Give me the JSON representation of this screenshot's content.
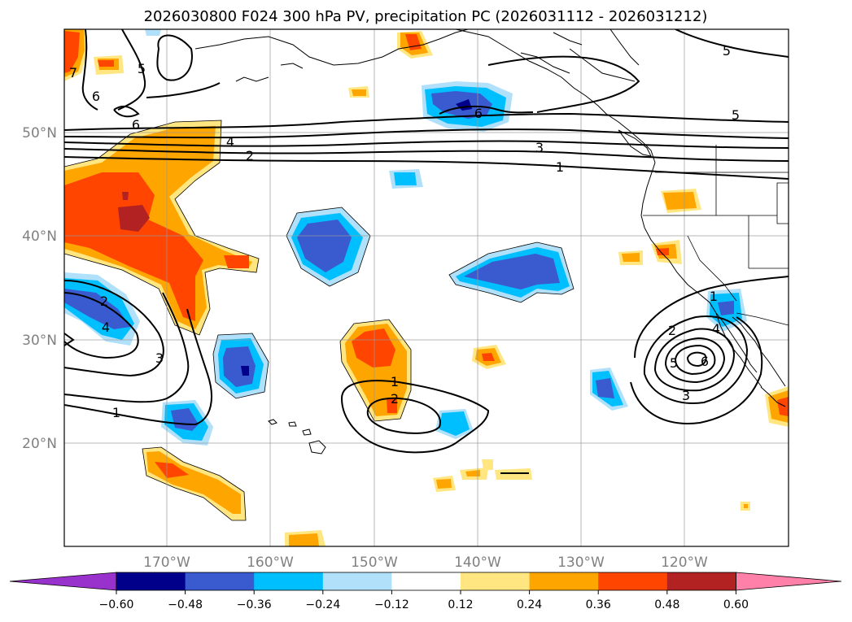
{
  "title": "2026030800 F024 300 hPa PV, precipitation PC (2026031112 - 2026031212)",
  "latitude_labels": [
    "50°N",
    "40°N",
    "30°N",
    "20°N"
  ],
  "longitude_labels": [
    "170°W",
    "160°W",
    "150°W",
    "140°W",
    "130°W",
    "120°W"
  ],
  "colorbar": {
    "tick_labels": [
      "−0.60",
      "−0.48",
      "−0.36",
      "−0.24",
      "−0.12",
      "0.12",
      "0.24",
      "0.36",
      "0.48",
      "0.60"
    ],
    "colors": [
      "#9932cc",
      "#00008b",
      "#3a5bd0",
      "#00bfff",
      "#b0e0fa",
      "#ffffff",
      "#ffe680",
      "#ffa500",
      "#ff4500",
      "#b22222",
      "#ff80a8"
    ]
  },
  "pv_contour_labels": {
    "nw_5": "5",
    "nw_6": "6",
    "nw_6b": "6",
    "nw_7": "7",
    "jet_4": "4",
    "jet_2": "2",
    "jet_3": "3",
    "jet_1": "1",
    "jet_5": "5",
    "gulf_6": "6",
    "ne_5": "5",
    "sw_2": "2",
    "sw_4": "4",
    "sw_3": "3",
    "sw_1": "1",
    "hi_1": "1",
    "hi_2": "2",
    "baja_2": "2",
    "baja_3": "3",
    "baja_1": "1",
    "baja_6": "6",
    "baja_4": "4",
    "baja_5": "5"
  }
}
